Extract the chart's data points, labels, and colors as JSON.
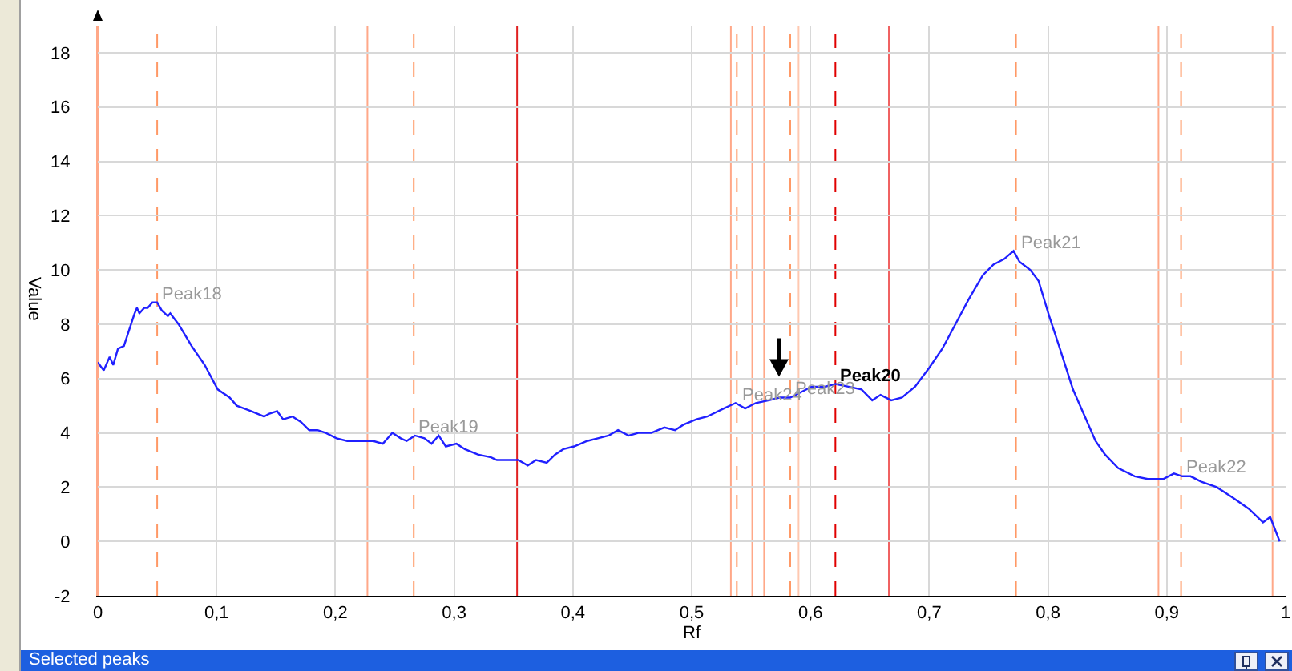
{
  "chart_data": {
    "type": "line",
    "xlabel": "Rf",
    "ylabel": "Value",
    "x": [
      0,
      0.005,
      0.01,
      0.013,
      0.017,
      0.022,
      0.028,
      0.031,
      0.033,
      0.035,
      0.039,
      0.042,
      0.046,
      0.05,
      0.054,
      0.059,
      0.061,
      0.068,
      0.079,
      0.09,
      0.101,
      0.111,
      0.117,
      0.129,
      0.14,
      0.144,
      0.151,
      0.156,
      0.164,
      0.171,
      0.178,
      0.185,
      0.192,
      0.201,
      0.21,
      0.223,
      0.232,
      0.24,
      0.248,
      0.255,
      0.26,
      0.267,
      0.275,
      0.281,
      0.287,
      0.293,
      0.302,
      0.309,
      0.32,
      0.331,
      0.336,
      0.347,
      0.354,
      0.362,
      0.369,
      0.378,
      0.385,
      0.392,
      0.401,
      0.412,
      0.421,
      0.43,
      0.438,
      0.447,
      0.455,
      0.466,
      0.477,
      0.486,
      0.493,
      0.504,
      0.513,
      0.527,
      0.537,
      0.545,
      0.554,
      0.565,
      0.574,
      0.583,
      0.592,
      0.601,
      0.612,
      0.621,
      0.632,
      0.643,
      0.652,
      0.659,
      0.668,
      0.677,
      0.688,
      0.7,
      0.711,
      0.722,
      0.733,
      0.745,
      0.754,
      0.763,
      0.771,
      0.776,
      0.785,
      0.792,
      0.801,
      0.81,
      0.821,
      0.83,
      0.84,
      0.848,
      0.859,
      0.873,
      0.884,
      0.897,
      0.906,
      0.913,
      0.92,
      0.929,
      0.942,
      0.956,
      0.969,
      0.981,
      0.987,
      0.995
    ],
    "series": [
      {
        "color": "#2020ff",
        "values": [
          6.6,
          6.3,
          6.8,
          6.5,
          7.1,
          7.2,
          8.0,
          8.4,
          8.6,
          8.4,
          8.6,
          8.6,
          8.8,
          8.8,
          8.5,
          8.3,
          8.4,
          8.0,
          7.2,
          6.5,
          5.6,
          5.3,
          5.0,
          4.8,
          4.6,
          4.7,
          4.8,
          4.5,
          4.6,
          4.4,
          4.1,
          4.1,
          4.0,
          3.8,
          3.7,
          3.7,
          3.7,
          3.6,
          4.0,
          3.8,
          3.7,
          3.9,
          3.8,
          3.6,
          3.9,
          3.5,
          3.6,
          3.4,
          3.2,
          3.1,
          3.0,
          3.0,
          3.0,
          2.8,
          3.0,
          2.9,
          3.2,
          3.4,
          3.5,
          3.7,
          3.8,
          3.9,
          4.1,
          3.9,
          4.0,
          4.0,
          4.2,
          4.1,
          4.3,
          4.5,
          4.6,
          4.9,
          5.1,
          4.9,
          5.1,
          5.2,
          5.3,
          5.3,
          5.5,
          5.7,
          5.7,
          5.8,
          5.7,
          5.6,
          5.2,
          5.4,
          5.2,
          5.3,
          5.7,
          6.4,
          7.1,
          8.0,
          8.9,
          9.8,
          10.2,
          10.4,
          10.7,
          10.3,
          10.0,
          9.6,
          8.3,
          7.1,
          5.6,
          4.7,
          3.7,
          3.2,
          2.7,
          2.4,
          2.3,
          2.3,
          2.5,
          2.4,
          2.4,
          2.2,
          2.0,
          1.6,
          1.2,
          0.7,
          0.9,
          0.0
        ]
      }
    ],
    "xlim": [
      0,
      1
    ],
    "ylim": [
      -2,
      19
    ],
    "xticks": [
      0,
      {
        "value": 0.1,
        "label": "0,1"
      },
      {
        "value": 0.2,
        "label": "0,2"
      },
      {
        "value": 0.3,
        "label": "0,3"
      },
      {
        "value": 0.4,
        "label": "0,4"
      },
      {
        "value": 0.5,
        "label": "0,5"
      },
      {
        "value": 0.6,
        "label": "0,6"
      },
      {
        "value": 0.7,
        "label": "0,7"
      },
      {
        "value": 0.8,
        "label": "0,8"
      },
      {
        "value": 0.9,
        "label": "0,9"
      },
      1
    ],
    "yticks": [
      -2,
      0,
      2,
      4,
      6,
      8,
      10,
      12,
      14,
      16,
      18
    ],
    "grid": true,
    "marker": "none",
    "line_style": "solid",
    "ref_lines": [
      {
        "axis": "x",
        "value": 0,
        "color": "#ffa888",
        "line_style": "solid"
      },
      {
        "axis": "x",
        "value": 0.05,
        "color": "#ff9966",
        "line_style": "dashed"
      },
      {
        "axis": "x",
        "value": 0.227,
        "color": "#ffa888",
        "line_style": "solid"
      },
      {
        "axis": "x",
        "value": 0.266,
        "color": "#ff9966",
        "line_style": "dashed"
      },
      {
        "axis": "x",
        "value": 0.353,
        "color": "#e02020",
        "line_style": "solid"
      },
      {
        "axis": "x",
        "value": 0.533,
        "color": "#ffa888",
        "line_style": "solid"
      },
      {
        "axis": "x",
        "value": 0.538,
        "color": "#ff9966",
        "line_style": "dashed"
      },
      {
        "axis": "x",
        "value": 0.551,
        "color": "#ffa888",
        "line_style": "solid"
      },
      {
        "axis": "x",
        "value": 0.561,
        "color": "#ffa888",
        "line_style": "solid"
      },
      {
        "axis": "x",
        "value": 0.583,
        "color": "#ff9966",
        "line_style": "dashed"
      },
      {
        "axis": "x",
        "value": 0.59,
        "color": "#ffc8b0",
        "line_style": "solid"
      },
      {
        "axis": "x",
        "value": 0.621,
        "color": "#e00000",
        "line_style": "dashed"
      },
      {
        "axis": "x",
        "value": 0.666,
        "color": "#f06060",
        "line_style": "solid"
      },
      {
        "axis": "x",
        "value": 0.773,
        "color": "#ff9966",
        "line_style": "dashed"
      },
      {
        "axis": "x",
        "value": 0.893,
        "color": "#ffa888",
        "line_style": "solid"
      },
      {
        "axis": "x",
        "value": 0.912,
        "color": "#ff9966",
        "line_style": "dashed"
      },
      {
        "axis": "x",
        "value": 0.989,
        "color": "#ffa888",
        "line_style": "solid"
      }
    ],
    "annotations": [
      {
        "text": "Peak18",
        "x": 0.05,
        "y": 8.8
      },
      {
        "text": "Peak19",
        "x": 0.266,
        "y": 3.9
      },
      {
        "text": "Peak24",
        "x": 0.538,
        "y": 5.1
      },
      {
        "text": "Peak23",
        "x": 0.583,
        "y": 5.3
      },
      {
        "text": "Peak20",
        "x": 0.621,
        "y": 5.8
      },
      {
        "text": "Peak21",
        "x": 0.773,
        "y": 10.7
      },
      {
        "text": "Peak22",
        "x": 0.912,
        "y": 2.4
      },
      "Selected peaks"
    ]
  }
}
